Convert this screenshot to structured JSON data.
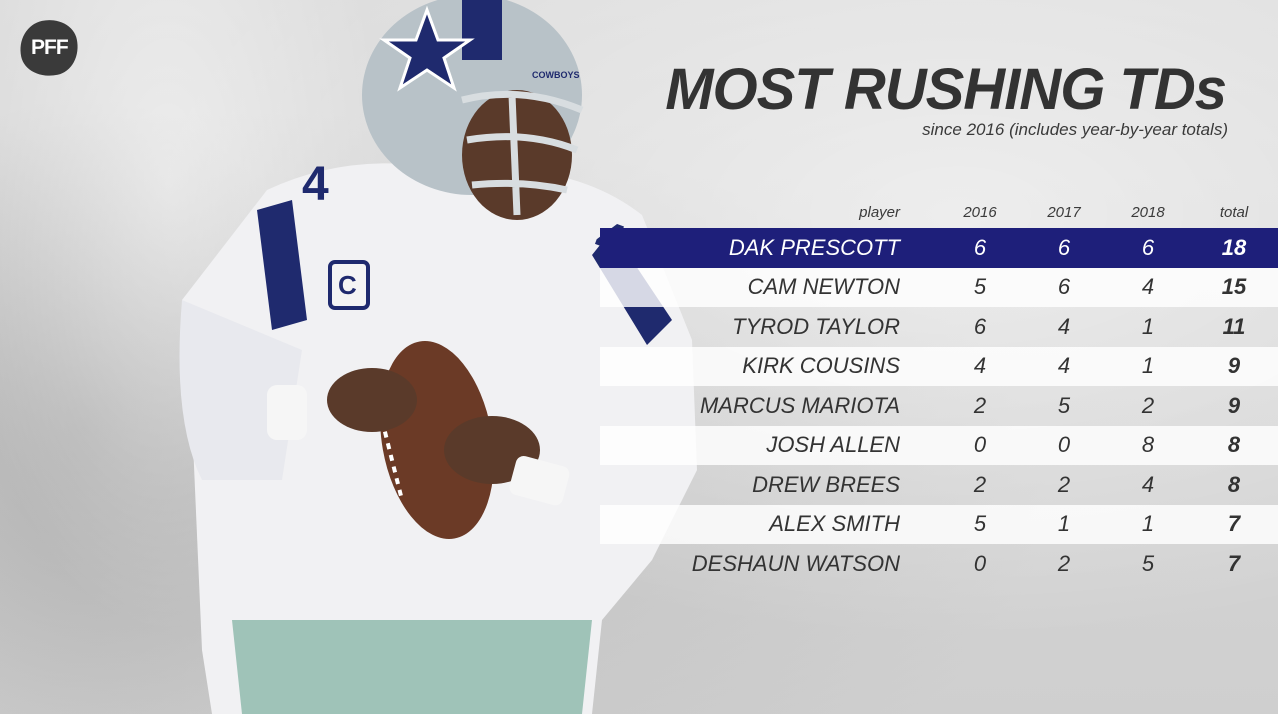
{
  "brand": {
    "logo_text": "PFF"
  },
  "chart_data": {
    "type": "table",
    "title": "MOST RUSHING TDs",
    "subtitle": "since 2016 (includes year-by-year totals)",
    "columns": [
      "player",
      "2016",
      "2017",
      "2018",
      "total"
    ],
    "highlight_row": 0,
    "highlight_color": "#1e1f7a",
    "rows": [
      {
        "player": "DAK PRESCOTT",
        "y2016": 6,
        "y2017": 6,
        "y2018": 6,
        "total": 18
      },
      {
        "player": "CAM NEWTON",
        "y2016": 5,
        "y2017": 6,
        "y2018": 4,
        "total": 15
      },
      {
        "player": "TYROD TAYLOR",
        "y2016": 6,
        "y2017": 4,
        "y2018": 1,
        "total": 11
      },
      {
        "player": "KIRK COUSINS",
        "y2016": 4,
        "y2017": 4,
        "y2018": 1,
        "total": 9
      },
      {
        "player": "MARCUS MARIOTA",
        "y2016": 2,
        "y2017": 5,
        "y2018": 2,
        "total": 9
      },
      {
        "player": "JOSH ALLEN",
        "y2016": 0,
        "y2017": 0,
        "y2018": 8,
        "total": 8
      },
      {
        "player": "DREW BREES",
        "y2016": 2,
        "y2017": 2,
        "y2018": 4,
        "total": 8
      },
      {
        "player": "ALEX SMITH",
        "y2016": 5,
        "y2017": 1,
        "y2018": 1,
        "total": 7
      },
      {
        "player": "DESHAUN WATSON",
        "y2016": 0,
        "y2017": 2,
        "y2018": 5,
        "total": 7
      }
    ]
  },
  "photo": {
    "jersey_number": "4",
    "captain_patch": "C",
    "helmet_text": "COWBOYS",
    "colors": {
      "navy": "#1f2a6e",
      "helmet_silver": "#b8c2c8",
      "jersey_white": "#f1f1f3",
      "football_brown": "#6b3a26"
    }
  }
}
